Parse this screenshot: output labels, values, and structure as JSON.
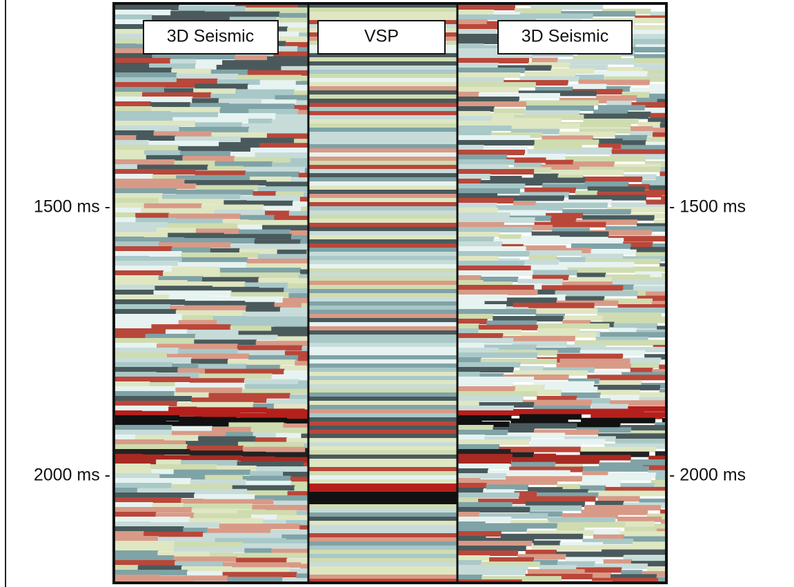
{
  "panels": [
    {
      "label": "3D Seismic"
    },
    {
      "label": "VSP"
    },
    {
      "label": "3D Seismic"
    }
  ],
  "left_axis": {
    "labels": [
      "1500 ms -",
      "2000 ms -"
    ]
  },
  "right_axis": {
    "labels": [
      "- 1500 ms",
      "- 2000 ms"
    ]
  }
}
